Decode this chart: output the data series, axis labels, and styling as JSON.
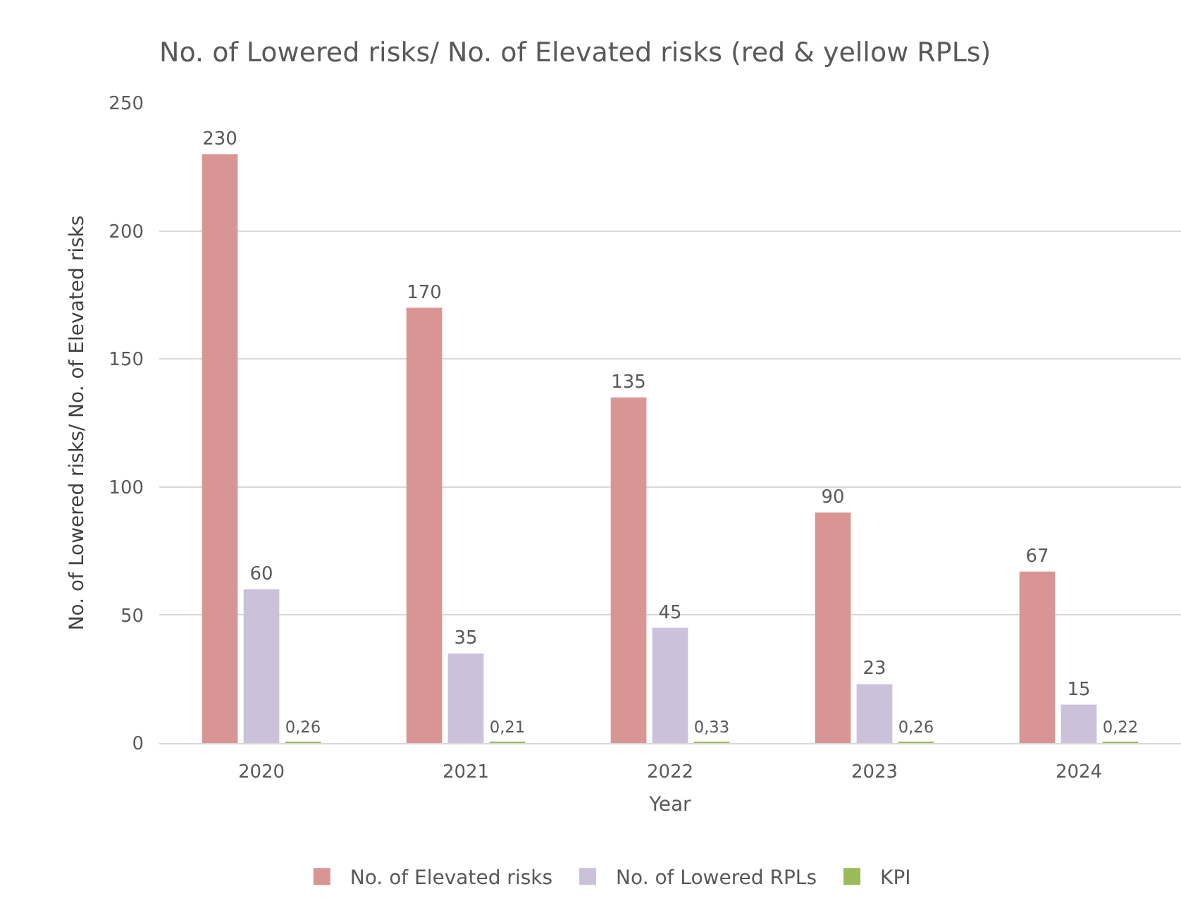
{
  "chart_data": {
    "type": "bar",
    "title": "No. of Lowered risks/ No. of Elevated risks (red & yellow RPLs)",
    "xlabel": "Year",
    "ylabel": "No. of Lowered risks/ No. of Elevated risks",
    "categories": [
      "2020",
      "2021",
      "2022",
      "2023",
      "2024"
    ],
    "series": [
      {
        "name": "No. of Elevated risks",
        "color": "#d99594",
        "values": [
          230,
          170,
          135,
          90,
          67
        ],
        "value_labels": [
          "230",
          "170",
          "135",
          "90",
          "67"
        ]
      },
      {
        "name": "No. of Lowered RPLs",
        "color": "#ccc1da",
        "values": [
          60,
          35,
          45,
          23,
          15
        ],
        "value_labels": [
          "60",
          "35",
          "45",
          "23",
          "15"
        ]
      },
      {
        "name": "KPI",
        "color": "#9bbb59",
        "values": [
          0.26,
          0.21,
          0.33,
          0.26,
          0.22
        ],
        "value_labels": [
          "0,26",
          "0,21",
          "0,33",
          "0,26",
          "0,22"
        ]
      }
    ],
    "ylim": [
      0,
      250
    ],
    "yticks": [
      0,
      50,
      100,
      150,
      200,
      250
    ],
    "grid": "y",
    "legend": "bottom"
  }
}
